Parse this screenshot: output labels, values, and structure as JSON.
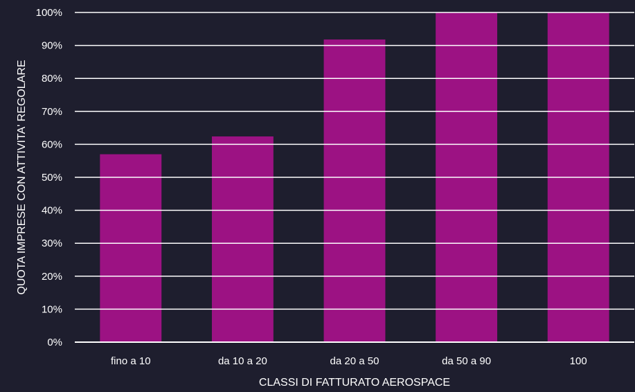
{
  "chart_data": {
    "type": "bar",
    "categories": [
      "fino a 10",
      "da 10 a 20",
      "da 20 a 50",
      "da 50 a 90",
      "100"
    ],
    "values": [
      57,
      62.4,
      91.8,
      100,
      100
    ],
    "xlabel": "CLASSI DI FATTURATO AEROSPACE",
    "ylabel": "QUOTA IMPRESE CON ATTIVITA' REGOLARE",
    "ylim": [
      0,
      100
    ],
    "yticks": [
      "0%",
      "10%",
      "20%",
      "30%",
      "40%",
      "50%",
      "60%",
      "70%",
      "80%",
      "90%",
      "100%"
    ],
    "grid": true,
    "legend": "none",
    "colors": {
      "bar": "#9c1283",
      "background": "#1e1e2e",
      "grid": "#ffffff",
      "text": "#ffffff"
    }
  }
}
